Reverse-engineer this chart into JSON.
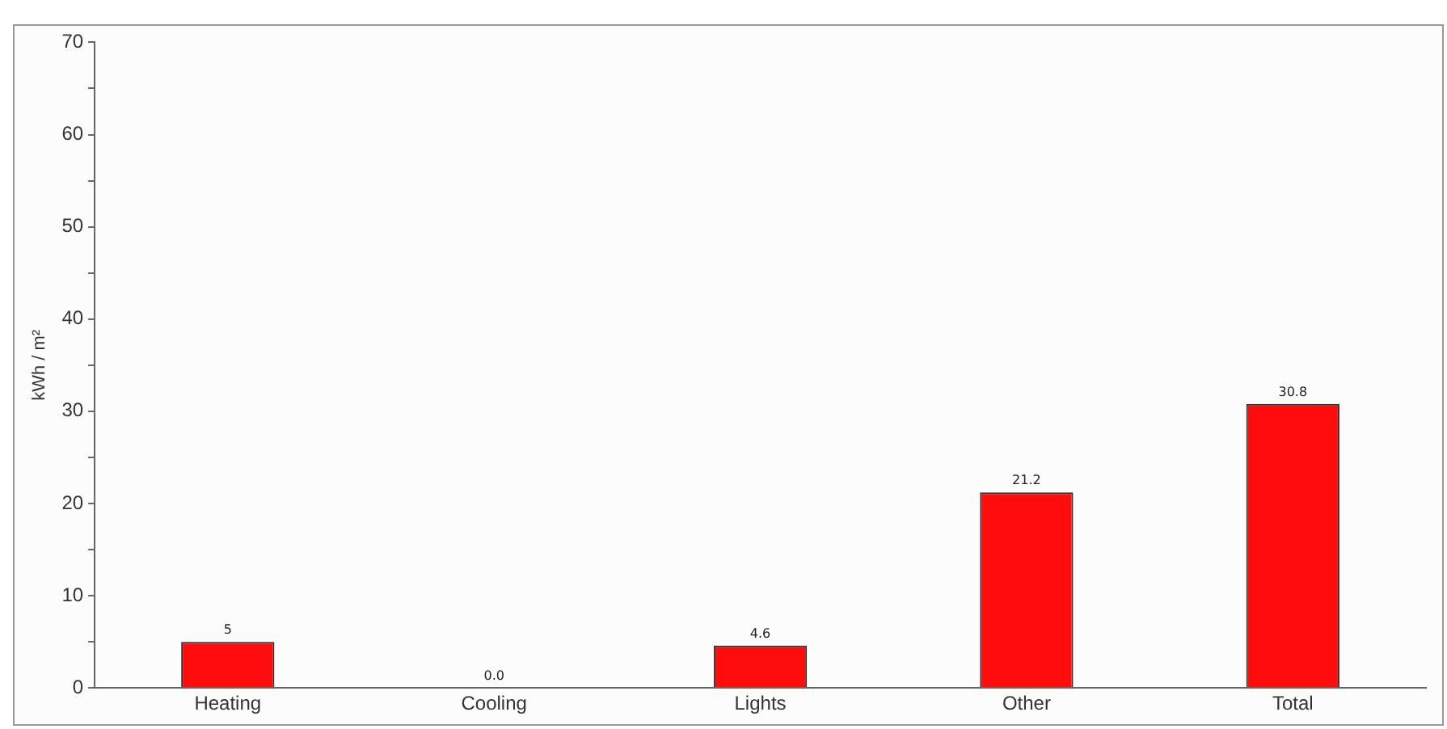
{
  "chart_data": {
    "type": "bar",
    "ylabel": "kWh / m²",
    "categories": [
      "Heating",
      "Cooling",
      "Lights",
      "Other",
      "Total"
    ],
    "values": [
      5,
      0,
      4.6,
      21.2,
      30.8
    ],
    "value_labels": [
      "5",
      "0.0",
      "4.6",
      "21.2",
      "30.8"
    ],
    "color": "#ff0d0d",
    "ylim": [
      0,
      70
    ],
    "yticks": [
      0,
      {
        "value": 5,
        "label": null
      },
      10,
      {
        "value": 15,
        "label": null
      },
      20,
      {
        "value": 25,
        "label": null
      },
      30,
      {
        "value": 35,
        "label": null
      },
      40,
      {
        "value": 45,
        "label": null
      },
      50,
      {
        "value": 55,
        "label": null
      },
      60,
      {
        "value": 65,
        "label": null
      },
      70
    ],
    "grid": false,
    "legend": false
  }
}
